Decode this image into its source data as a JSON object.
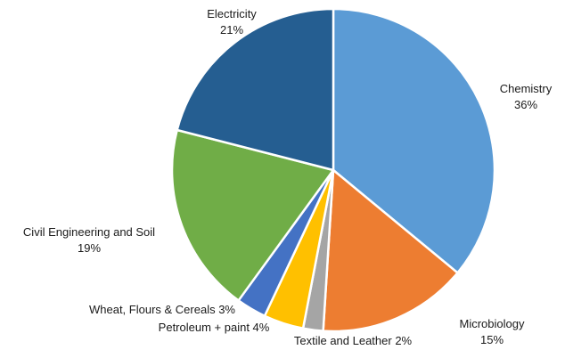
{
  "chart_data": {
    "type": "pie",
    "title": "",
    "start_angle_deg": 0,
    "direction": "clockwise",
    "slices": [
      {
        "label": "Chemistry",
        "value": 36,
        "value_label": "36%",
        "color": "#5b9bd5"
      },
      {
        "label": "Microbiology",
        "value": 15,
        "value_label": "15%",
        "color": "#ed7d31"
      },
      {
        "label": "Textile and Leather 2%",
        "value": 2,
        "value_label": "",
        "color": "#a5a5a5"
      },
      {
        "label": "Petroleum + paint 4%",
        "value": 4,
        "value_label": "",
        "color": "#ffc000"
      },
      {
        "label": "Wheat, Flours & Cereals 3%",
        "value": 3,
        "value_label": "",
        "color": "#4472c4"
      },
      {
        "label": "Civil Engineering  and Soil",
        "value": 19,
        "value_label": "19%",
        "color": "#70ad47"
      },
      {
        "label": "Electricity",
        "value": 21,
        "value_label": "21%",
        "color": "#255e91"
      }
    ],
    "legend": "none"
  }
}
